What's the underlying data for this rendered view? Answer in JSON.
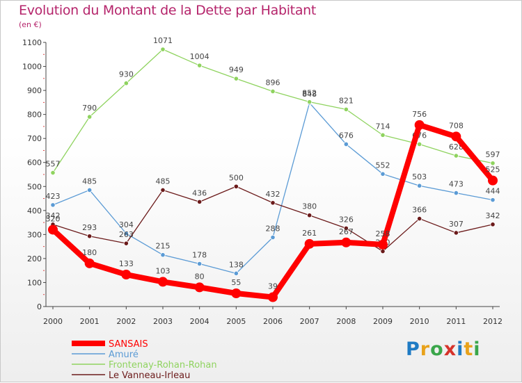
{
  "title": "Evolution du Montant de la Dette par Habitant",
  "subtitle": "(en €)",
  "logo": {
    "text": "Proxiti",
    "colors": [
      "#1f7bc4",
      "#e8a21b",
      "#3aa64a",
      "#d6332b",
      "#1f7bc4",
      "#e8a21b",
      "#3aa64a"
    ]
  },
  "chart_data": {
    "type": "line",
    "x": [
      "2000",
      "2001",
      "2002",
      "2003",
      "2004",
      "2005",
      "2006",
      "2007",
      "2008",
      "2009",
      "2010",
      "2011",
      "2012"
    ],
    "ylim": [
      0,
      1100
    ],
    "yticks": [
      0,
      100,
      200,
      300,
      400,
      500,
      600,
      700,
      800,
      900,
      1000,
      1100
    ],
    "grid": false,
    "legend_placement": "bottom-left",
    "series": [
      {
        "name": "Amuré",
        "color": "#5b9bd5",
        "emphasis": false,
        "values": [
          423,
          485,
          304,
          215,
          178,
          138,
          288,
          848,
          676,
          552,
          503,
          473,
          444
        ]
      },
      {
        "name": "Frontenay-Rohan-Rohan",
        "color": "#8fd35f",
        "emphasis": false,
        "values": [
          557,
          790,
          930,
          1071,
          1004,
          949,
          896,
          852,
          821,
          714,
          676,
          628,
          597
        ]
      },
      {
        "name": "Le Vanneau-Irleau",
        "color": "#6b1a1a",
        "emphasis": false,
        "values": [
          342,
          293,
          263,
          485,
          436,
          500,
          432,
          380,
          326,
          230,
          366,
          307,
          342
        ]
      },
      {
        "name": "SANSAIS",
        "color": "#ff0000",
        "emphasis": true,
        "values": [
          320,
          180,
          133,
          103,
          80,
          55,
          39,
          261,
          267,
          258,
          756,
          708,
          525
        ]
      }
    ],
    "legend_order": [
      "SANSAIS",
      "Amuré",
      "Frontenay-Rohan-Rohan",
      "Le Vanneau-Irleau"
    ]
  }
}
